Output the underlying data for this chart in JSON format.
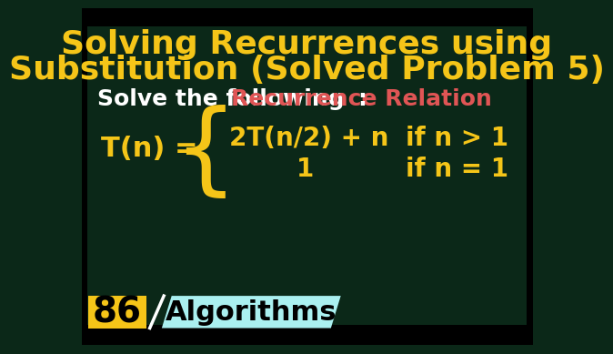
{
  "bg_color": "#0b2818",
  "title_line1": "Solving Recurrences using",
  "title_line2": "Substitution (Solved Problem 5)",
  "title_color": "#f5c518",
  "subtitle_white": "Solve the following ",
  "subtitle_pink": "Recurrence Relation",
  "subtitle_colon": ":",
  "subtitle_white_color": "#ffffff",
  "subtitle_pink_color": "#e05555",
  "subtitle_colon_color": "#ffffff",
  "tn_label": "T(n) =",
  "tn_color": "#f5c518",
  "case1_expr": "2T(n/2) + n",
  "case1_cond": "if n > 1",
  "case2_expr": "1",
  "case2_cond": "if n = 1",
  "expr_color": "#f5c518",
  "cond_color": "#f5c518",
  "brace_color": "#f5c518",
  "badge_bg": "#f5c518",
  "badge_text": "86",
  "badge_text_color": "#000000",
  "algo_bg": "#aaf0f0",
  "algo_text": "Algorithms",
  "algo_text_color": "#000000",
  "title_fontsize": 26,
  "subtitle_fontsize": 18,
  "expr_fontsize": 20,
  "badge_fontsize": 28,
  "algo_fontsize": 22
}
